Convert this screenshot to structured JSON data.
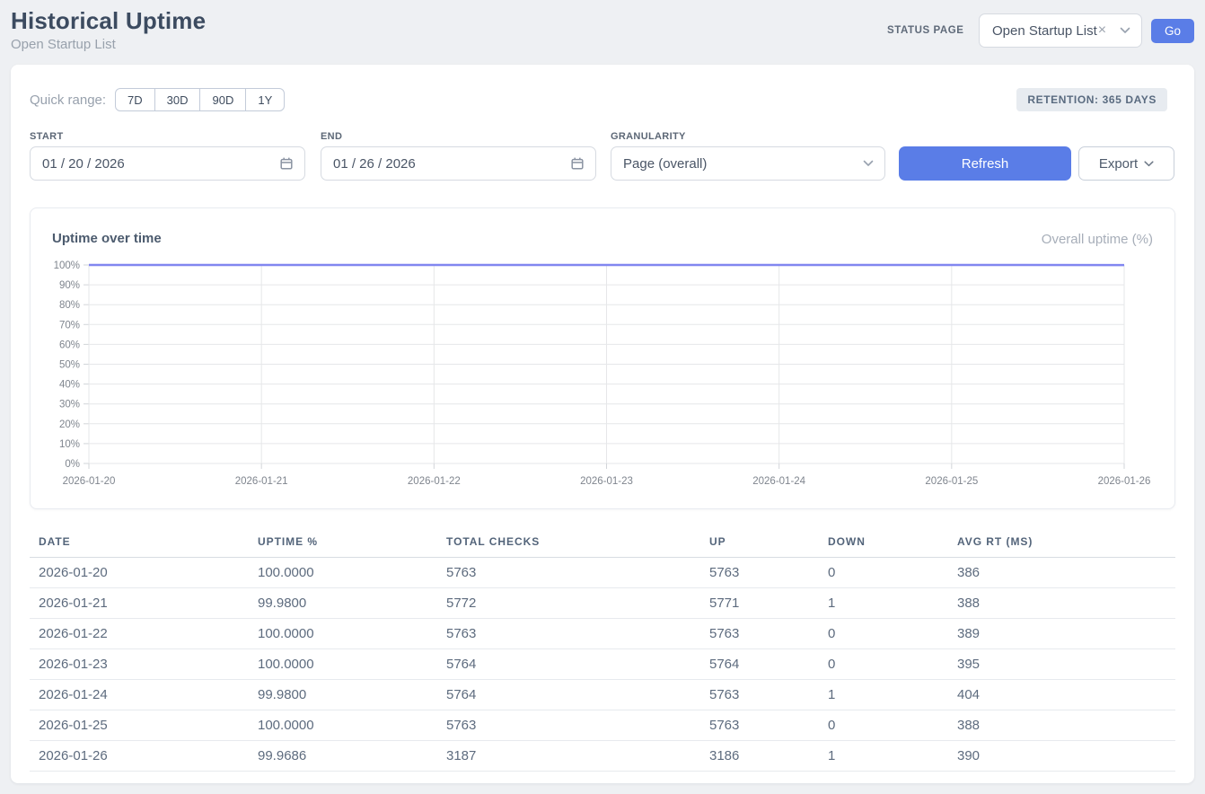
{
  "header": {
    "title": "Historical Uptime",
    "subtitle": "Open Startup List",
    "status_page_label": "STATUS PAGE",
    "status_page_value": "Open Startup List",
    "clear_icon": "×",
    "go_label": "Go"
  },
  "filters": {
    "quick_range_label": "Quick range:",
    "quick_ranges": [
      "7D",
      "30D",
      "90D",
      "1Y"
    ],
    "retention_badge": "RETENTION: 365 DAYS",
    "start_label": "START",
    "start_value": "01 / 20 / 2026",
    "end_label": "END",
    "end_value": "01 / 26 / 2026",
    "granularity_label": "GRANULARITY",
    "granularity_value": "Page (overall)",
    "refresh_label": "Refresh",
    "export_label": "Export"
  },
  "chart": {
    "title": "Uptime over time",
    "legend": "Overall uptime (%)"
  },
  "chart_data": {
    "type": "line",
    "title": "Uptime over time",
    "series_name": "Overall uptime (%)",
    "categories": [
      "2026-01-20",
      "2026-01-21",
      "2026-01-22",
      "2026-01-23",
      "2026-01-24",
      "2026-01-25",
      "2026-01-26"
    ],
    "values": [
      100.0,
      99.98,
      100.0,
      100.0,
      99.98,
      100.0,
      99.9686
    ],
    "ylim": [
      0,
      100
    ],
    "ytick_step": 10,
    "ytick_suffix": "%",
    "grid": true,
    "legend_position": "top-right",
    "line_color": "#8186f0"
  },
  "table": {
    "columns": [
      "DATE",
      "UPTIME %",
      "TOTAL CHECKS",
      "UP",
      "DOWN",
      "AVG RT (MS)"
    ],
    "rows": [
      [
        "2026-01-20",
        "100.0000",
        "5763",
        "5763",
        "0",
        "386"
      ],
      [
        "2026-01-21",
        "99.9800",
        "5772",
        "5771",
        "1",
        "388"
      ],
      [
        "2026-01-22",
        "100.0000",
        "5763",
        "5763",
        "0",
        "389"
      ],
      [
        "2026-01-23",
        "100.0000",
        "5764",
        "5764",
        "0",
        "395"
      ],
      [
        "2026-01-24",
        "99.9800",
        "5764",
        "5763",
        "1",
        "404"
      ],
      [
        "2026-01-25",
        "100.0000",
        "5763",
        "5763",
        "0",
        "388"
      ],
      [
        "2026-01-26",
        "99.9686",
        "3187",
        "3186",
        "1",
        "390"
      ]
    ]
  },
  "colors": {
    "accent_blue": "#5a7de7",
    "chart_line": "#8186f0",
    "page_background": "#eef0f3"
  }
}
